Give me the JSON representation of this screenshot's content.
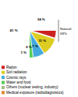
{
  "chart_data": {
    "type": "pie",
    "categories": [
      "Radon",
      "Soil radiation",
      "Cosmic rays",
      "Water and food",
      "Others (nuclear testing, industry)",
      "Medical exposure (radiodiagnostics)"
    ],
    "values": [
      34,
      11,
      7,
      6,
      1,
      41
    ],
    "value_labels": [
      "34 %",
      "11 %",
      "7 %",
      "6 %",
      "1 %",
      "41 %"
    ],
    "colors": [
      "#cc2222",
      "#ddcc22",
      "#44aadd",
      "#55cc55",
      "#aabb88",
      "#dd8833"
    ],
    "data_labels": true,
    "annotations": [
      "Natural:\n58%"
    ],
    "legend": "bottom"
  }
}
